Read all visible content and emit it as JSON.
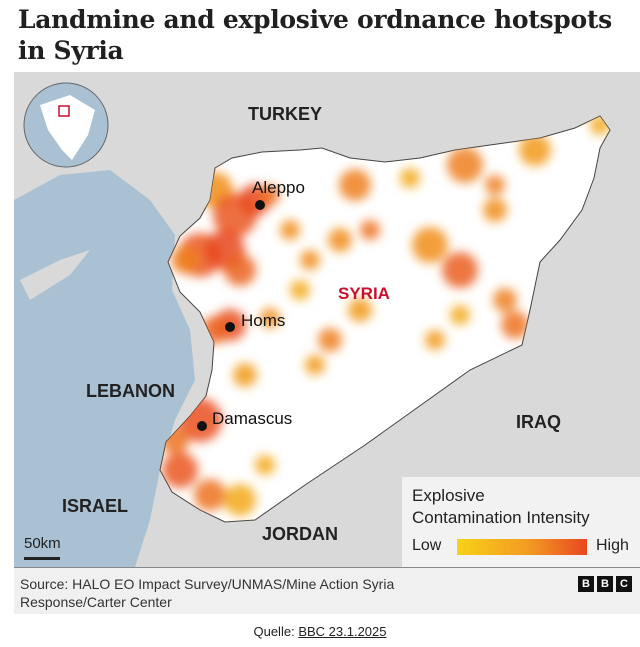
{
  "title": "Landmine and explosive ordnance hotspots in Syria",
  "map": {
    "countries": {
      "turkey": "TURKEY",
      "syria": "SYRIA",
      "lebanon": "LEBANON",
      "israel": "ISRAEL",
      "jordan": "JORDAN",
      "iraq": "IRAQ"
    },
    "cities": [
      "Aleppo",
      "Homs",
      "Damascus"
    ],
    "scale": "50km",
    "colors": {
      "low": "#f7d117",
      "high": "#e8481f",
      "land": "#d9d9d9",
      "sea": "#a9c1d3",
      "syria": "#ffffff"
    }
  },
  "legend": {
    "title_line1": "Explosive",
    "title_line2": "Contamination Intensity",
    "low": "Low",
    "high": "High"
  },
  "footer": {
    "source": "Source: HALO EO Impact Survey/UNMAS/Mine Action Syria Response/Carter Center",
    "logo": "BBC"
  },
  "caption": {
    "prefix": "Quelle:",
    "link": "BBC 23.1.2025"
  }
}
